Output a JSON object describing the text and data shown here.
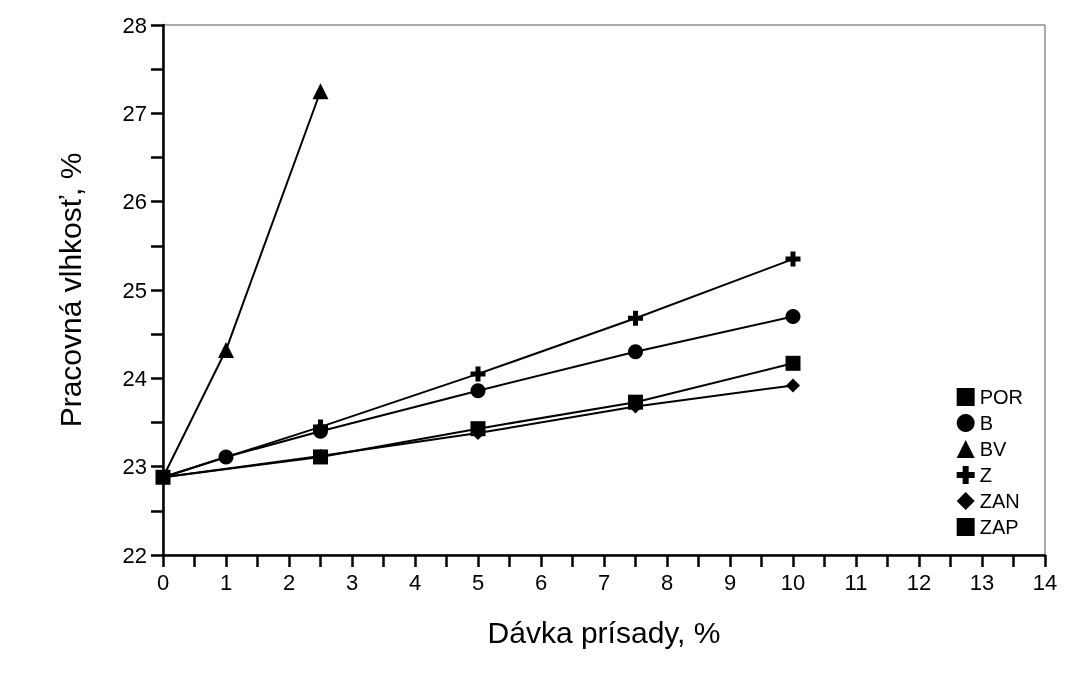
{
  "chart_data": {
    "type": "line",
    "xlabel": "Dávka prísady, %",
    "ylabel": "Pracovná vlhkosť, %",
    "xlim": [
      0,
      14
    ],
    "xticks": [
      0,
      1,
      2,
      3,
      4,
      5,
      6,
      7,
      8,
      9,
      10,
      11,
      12,
      13,
      14
    ],
    "ylim": [
      22,
      28
    ],
    "yticks": [
      22,
      23,
      24,
      25,
      26,
      27,
      28
    ],
    "grid": false,
    "legend": "bottom right",
    "line_style": "solid",
    "series": [
      {
        "name": "POR",
        "color": "#000000",
        "marker": "square",
        "x": [
          0
        ],
        "values": [
          22.88
        ]
      },
      {
        "name": "B",
        "color": "#000000",
        "marker": "circle",
        "x": [
          0,
          1,
          2.5,
          5,
          7.5,
          10
        ],
        "values": [
          22.88,
          23.11,
          23.4,
          23.86,
          24.3,
          24.7
        ]
      },
      {
        "name": "BV",
        "color": "#000000",
        "marker": "triangle",
        "x": [
          0,
          1,
          2.5
        ],
        "values": [
          22.88,
          24.32,
          27.25
        ]
      },
      {
        "name": "Z",
        "color": "#000000",
        "marker": "cross",
        "x": [
          0,
          2.5,
          5,
          7.5,
          10
        ],
        "values": [
          22.88,
          23.45,
          24.05,
          24.68,
          25.35
        ]
      },
      {
        "name": "ZAN",
        "color": "#000000",
        "marker": "diamond",
        "x": [
          0,
          2.5,
          5,
          7.5,
          10
        ],
        "values": [
          22.88,
          23.12,
          23.38,
          23.68,
          23.92
        ]
      },
      {
        "name": "ZAP",
        "color": "#000000",
        "marker": "square",
        "x": [
          0,
          2.5,
          5,
          7.5,
          10
        ],
        "values": [
          22.88,
          23.11,
          23.43,
          23.73,
          24.17
        ]
      }
    ]
  }
}
